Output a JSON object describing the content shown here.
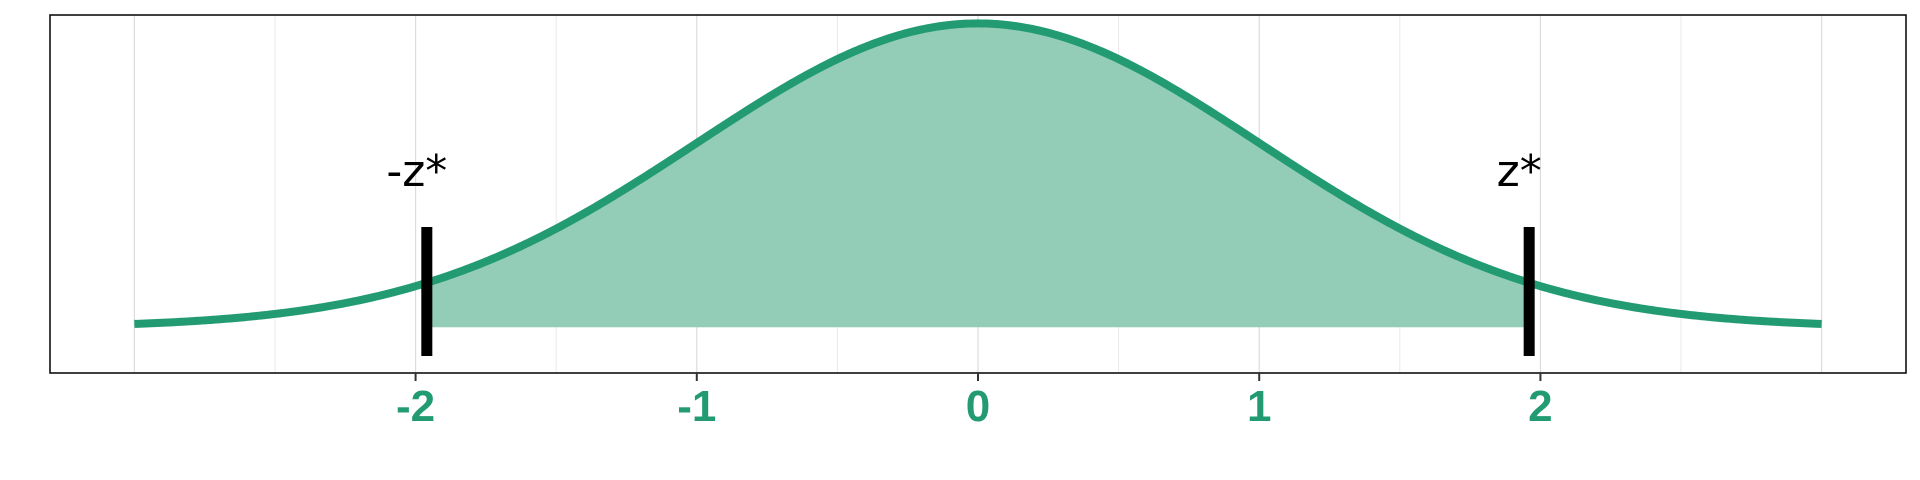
{
  "chart_data": {
    "type": "area",
    "title": "",
    "xlabel": "",
    "ylabel": "",
    "distribution": "standard normal",
    "xlim": [
      -3.3,
      3.3
    ],
    "ylim": [
      -0.06,
      0.41
    ],
    "curve_x_range": [
      -3,
      3
    ],
    "shaded_region": [
      -1.96,
      1.96
    ],
    "x_ticks": [
      -2,
      -1,
      0,
      1,
      2
    ],
    "x_tick_labels": [
      "-2",
      "-1",
      "0",
      "1",
      "2"
    ],
    "grid": true,
    "critical_values": [
      {
        "x": -1.96,
        "label": "-z*"
      },
      {
        "x": 1.96,
        "label": "z*"
      }
    ]
  },
  "colors": {
    "curve": "#239b72",
    "fill": "#93cdb7",
    "tick_label": "#239b72",
    "marker": "#000000",
    "frame": "#000000"
  }
}
